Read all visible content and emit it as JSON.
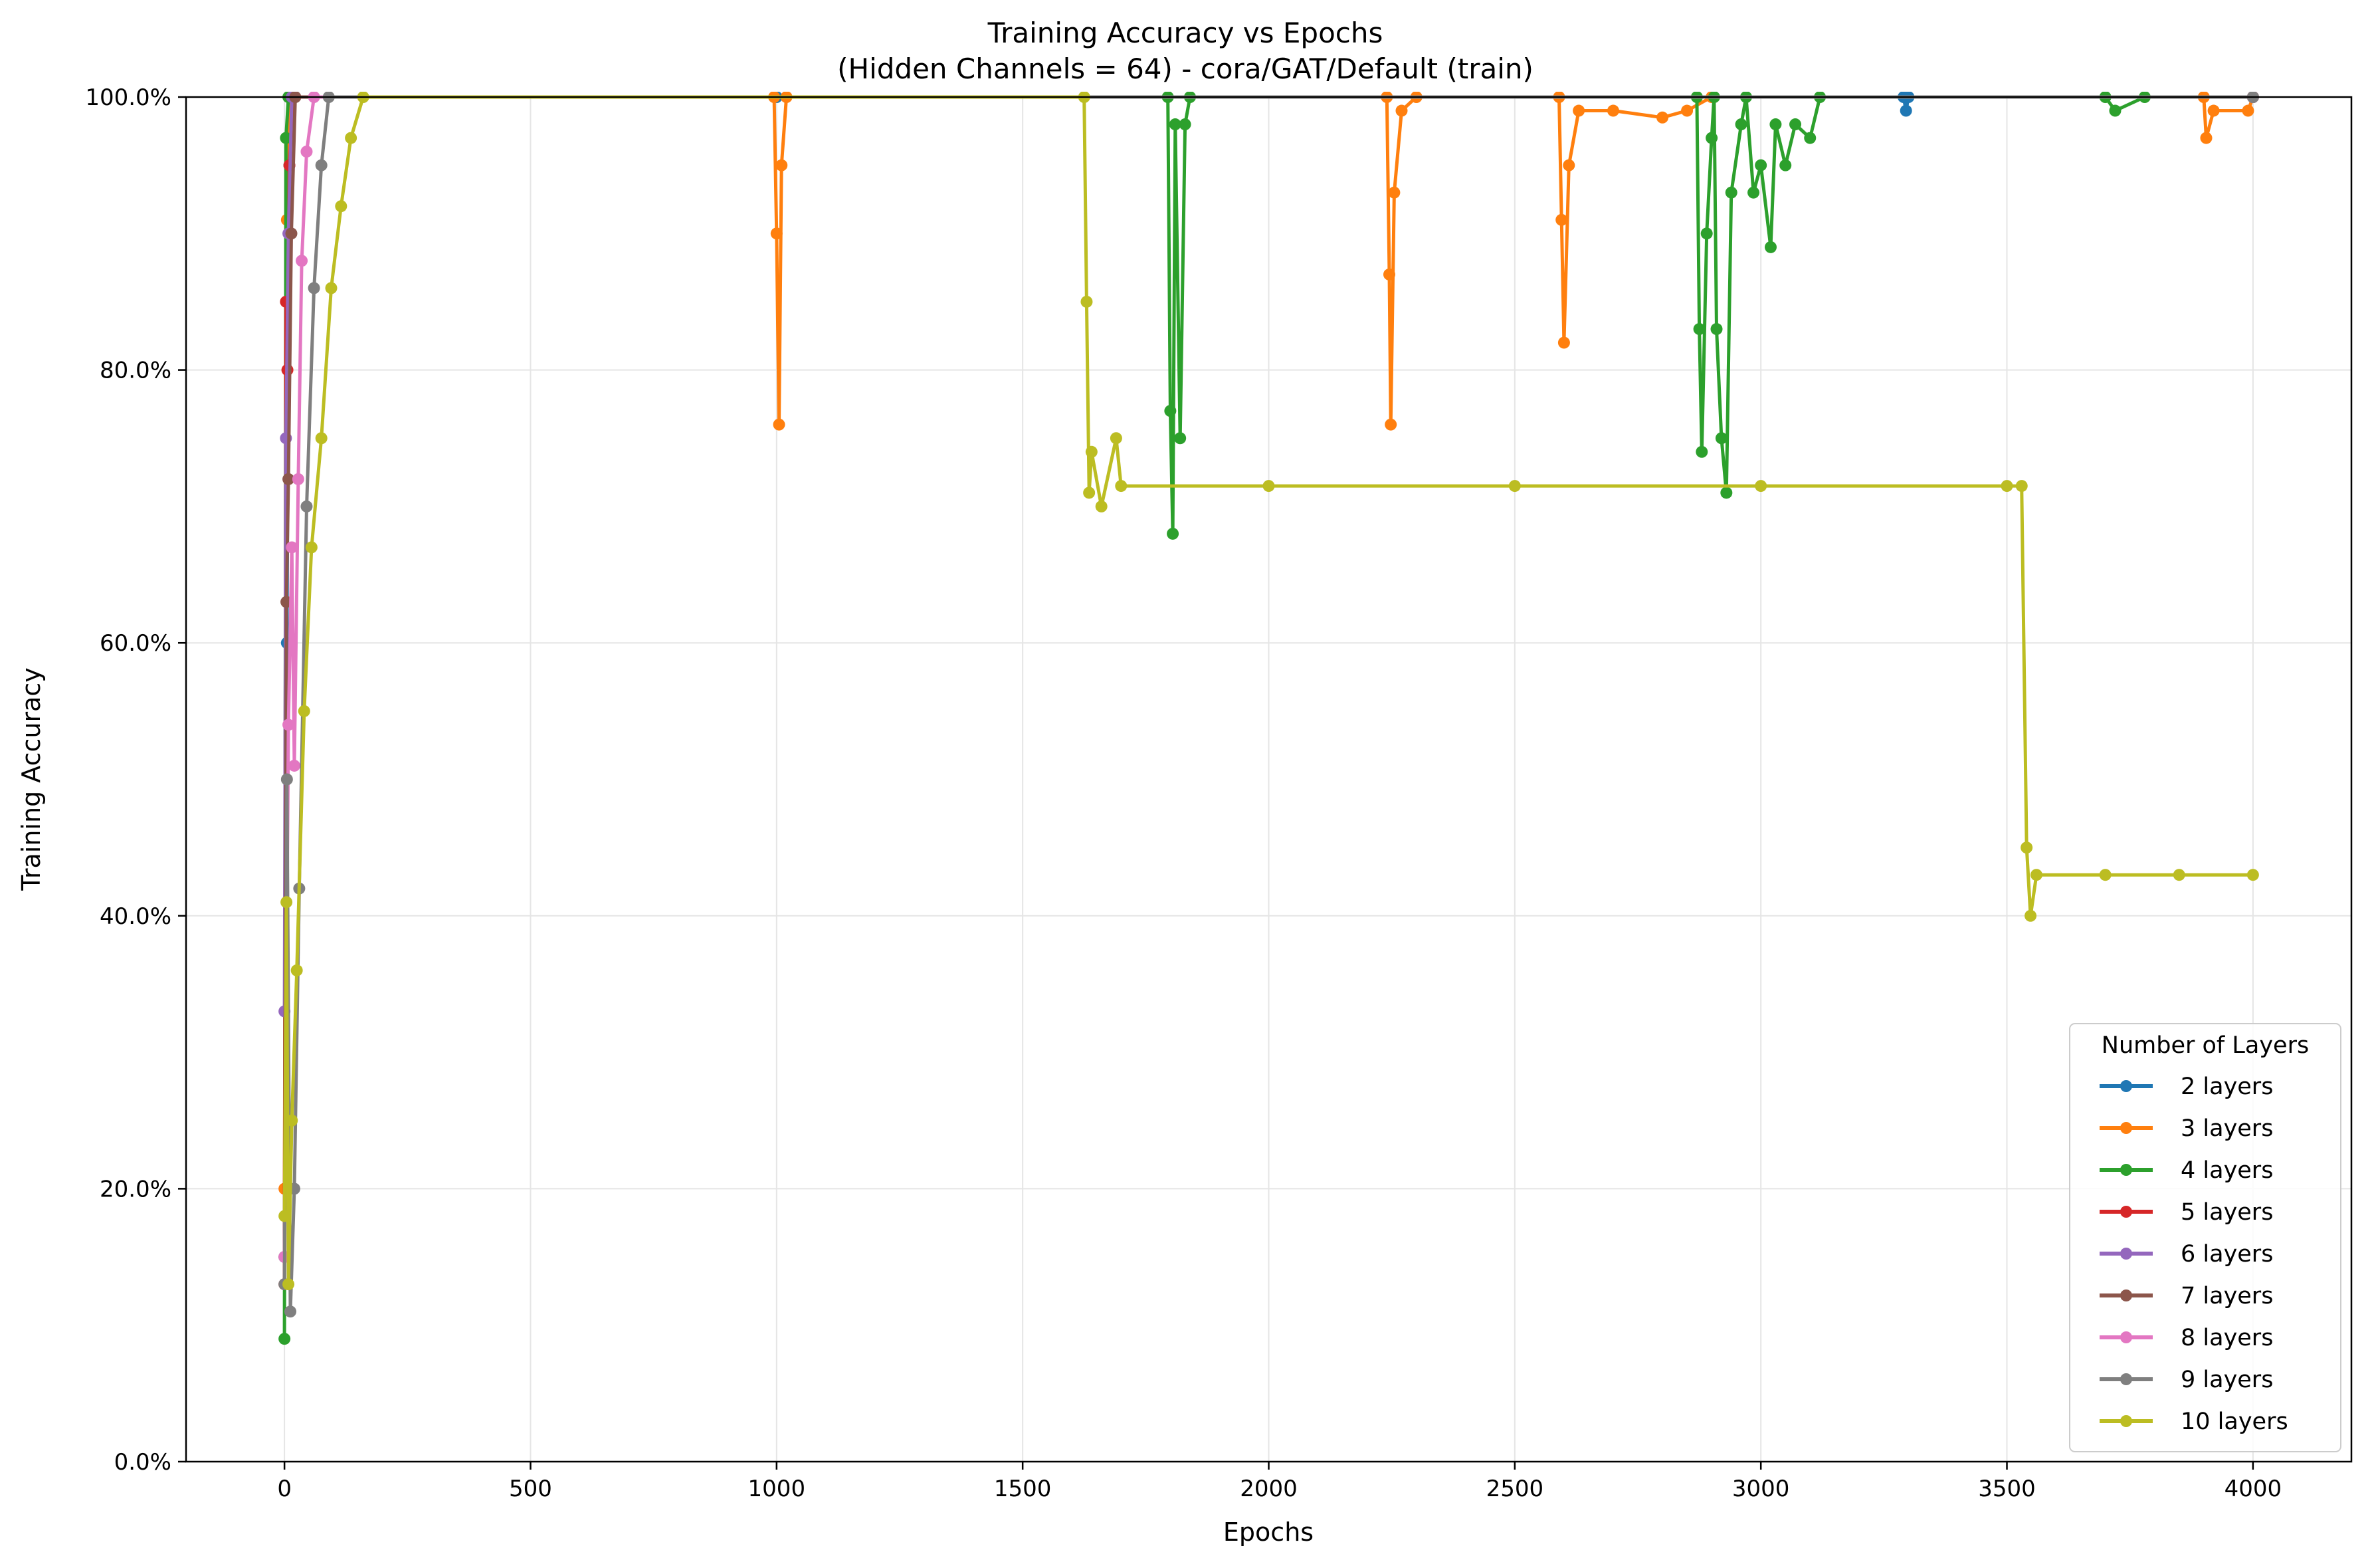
{
  "chart_data": {
    "type": "line",
    "title": "Training Accuracy vs Epochs",
    "subtitle": "(Hidden Channels = 64) - cora/GAT/Default (train)",
    "xlabel": "Epochs",
    "ylabel": "Training Accuracy",
    "xlim": [
      -200,
      4200
    ],
    "ylim": [
      0,
      1
    ],
    "x_ticks": [
      0,
      500,
      1000,
      1500,
      2000,
      2500,
      3000,
      3500,
      4000
    ],
    "x_tick_labels": [
      "0",
      "500",
      "1000",
      "1500",
      "2000",
      "2500",
      "3000",
      "3500",
      "4000"
    ],
    "y_ticks": [
      0,
      0.2,
      0.4,
      0.6,
      0.8,
      1.0
    ],
    "y_tick_labels": [
      "0.0%",
      "20.0%",
      "40.0%",
      "60.0%",
      "80.0%",
      "100.0%"
    ],
    "grid": true,
    "legend": {
      "title": "Number of Layers",
      "placement": "lower-right"
    },
    "series": [
      {
        "name": "2 layers",
        "color": "#1f77b4",
        "points": [
          [
            0,
            0.15
          ],
          [
            5,
            0.6
          ],
          [
            10,
            0.95
          ],
          [
            15,
            1.0
          ],
          [
            1000,
            1.0
          ],
          [
            3290,
            1.0
          ],
          [
            3295,
            0.99
          ],
          [
            3300,
            1.0
          ],
          [
            4000,
            1.0
          ]
        ]
      },
      {
        "name": "3 layers",
        "color": "#ff7f0e",
        "points": [
          [
            0,
            0.2
          ],
          [
            5,
            0.91
          ],
          [
            10,
            1.0
          ],
          [
            995,
            1.0
          ],
          [
            1000,
            0.9
          ],
          [
            1005,
            0.76
          ],
          [
            1010,
            0.95
          ],
          [
            1020,
            1.0
          ],
          [
            2240,
            1.0
          ],
          [
            2245,
            0.87
          ],
          [
            2248,
            0.76
          ],
          [
            2255,
            0.93
          ],
          [
            2270,
            0.99
          ],
          [
            2300,
            1.0
          ],
          [
            2590,
            1.0
          ],
          [
            2595,
            0.91
          ],
          [
            2600,
            0.82
          ],
          [
            2610,
            0.95
          ],
          [
            2630,
            0.99
          ],
          [
            2700,
            0.99
          ],
          [
            2800,
            0.985
          ],
          [
            2850,
            0.99
          ],
          [
            2900,
            1.0
          ],
          [
            3900,
            1.0
          ],
          [
            3905,
            0.97
          ],
          [
            3920,
            0.99
          ],
          [
            3990,
            0.99
          ],
          [
            4000,
            1.0
          ]
        ]
      },
      {
        "name": "4 layers",
        "color": "#2ca02c",
        "points": [
          [
            0,
            0.09
          ],
          [
            3,
            0.97
          ],
          [
            8,
            1.0
          ],
          [
            1795,
            1.0
          ],
          [
            1800,
            0.77
          ],
          [
            1805,
            0.68
          ],
          [
            1810,
            0.98
          ],
          [
            1820,
            0.75
          ],
          [
            1830,
            0.98
          ],
          [
            1840,
            1.0
          ],
          [
            2870,
            1.0
          ],
          [
            2875,
            0.83
          ],
          [
            2880,
            0.74
          ],
          [
            2890,
            0.9
          ],
          [
            2900,
            0.97
          ],
          [
            2905,
            1.0
          ],
          [
            2910,
            0.83
          ],
          [
            2920,
            0.75
          ],
          [
            2930,
            0.71
          ],
          [
            2940,
            0.93
          ],
          [
            2960,
            0.98
          ],
          [
            2970,
            1.0
          ],
          [
            2985,
            0.93
          ],
          [
            3000,
            0.95
          ],
          [
            3020,
            0.89
          ],
          [
            3030,
            0.98
          ],
          [
            3050,
            0.95
          ],
          [
            3070,
            0.98
          ],
          [
            3100,
            0.97
          ],
          [
            3120,
            1.0
          ],
          [
            3700,
            1.0
          ],
          [
            3720,
            0.99
          ],
          [
            3780,
            1.0
          ],
          [
            4000,
            1.0
          ]
        ]
      },
      {
        "name": "5 layers",
        "color": "#d62728",
        "points": [
          [
            0,
            0.13
          ],
          [
            3,
            0.85
          ],
          [
            6,
            0.8
          ],
          [
            10,
            0.95
          ],
          [
            18,
            1.0
          ],
          [
            4000,
            1.0
          ]
        ]
      },
      {
        "name": "6 layers",
        "color": "#9467bd",
        "points": [
          [
            0,
            0.33
          ],
          [
            3,
            0.75
          ],
          [
            8,
            0.9
          ],
          [
            15,
            1.0
          ],
          [
            4000,
            1.0
          ]
        ]
      },
      {
        "name": "7 layers",
        "color": "#8c564b",
        "points": [
          [
            0,
            0.15
          ],
          [
            4,
            0.63
          ],
          [
            8,
            0.72
          ],
          [
            14,
            0.9
          ],
          [
            22,
            1.0
          ],
          [
            4000,
            1.0
          ]
        ]
      },
      {
        "name": "8 layers",
        "color": "#e377c2",
        "points": [
          [
            0,
            0.15
          ],
          [
            8,
            0.54
          ],
          [
            15,
            0.67
          ],
          [
            20,
            0.51
          ],
          [
            28,
            0.72
          ],
          [
            35,
            0.88
          ],
          [
            45,
            0.96
          ],
          [
            60,
            1.0
          ],
          [
            4000,
            1.0
          ]
        ]
      },
      {
        "name": "9 layers",
        "color": "#7f7f7f",
        "points": [
          [
            0,
            0.13
          ],
          [
            5,
            0.5
          ],
          [
            12,
            0.11
          ],
          [
            20,
            0.2
          ],
          [
            30,
            0.42
          ],
          [
            45,
            0.7
          ],
          [
            60,
            0.86
          ],
          [
            75,
            0.95
          ],
          [
            90,
            1.0
          ],
          [
            4000,
            1.0
          ]
        ]
      },
      {
        "name": "10 layers",
        "color": "#bcbd22",
        "points": [
          [
            0,
            0.18
          ],
          [
            4,
            0.41
          ],
          [
            8,
            0.13
          ],
          [
            15,
            0.25
          ],
          [
            25,
            0.36
          ],
          [
            40,
            0.55
          ],
          [
            55,
            0.67
          ],
          [
            75,
            0.75
          ],
          [
            95,
            0.86
          ],
          [
            115,
            0.92
          ],
          [
            135,
            0.97
          ],
          [
            160,
            1.0
          ],
          [
            1625,
            1.0
          ],
          [
            1630,
            0.85
          ],
          [
            1635,
            0.71
          ],
          [
            1640,
            0.74
          ],
          [
            1660,
            0.7
          ],
          [
            1690,
            0.75
          ],
          [
            1700,
            0.715
          ],
          [
            2000,
            0.715
          ],
          [
            2500,
            0.715
          ],
          [
            3000,
            0.715
          ],
          [
            3500,
            0.715
          ],
          [
            3530,
            0.715
          ],
          [
            3540,
            0.45
          ],
          [
            3548,
            0.4
          ],
          [
            3560,
            0.43
          ],
          [
            3700,
            0.43
          ],
          [
            3850,
            0.43
          ],
          [
            4000,
            0.43
          ]
        ]
      }
    ]
  }
}
